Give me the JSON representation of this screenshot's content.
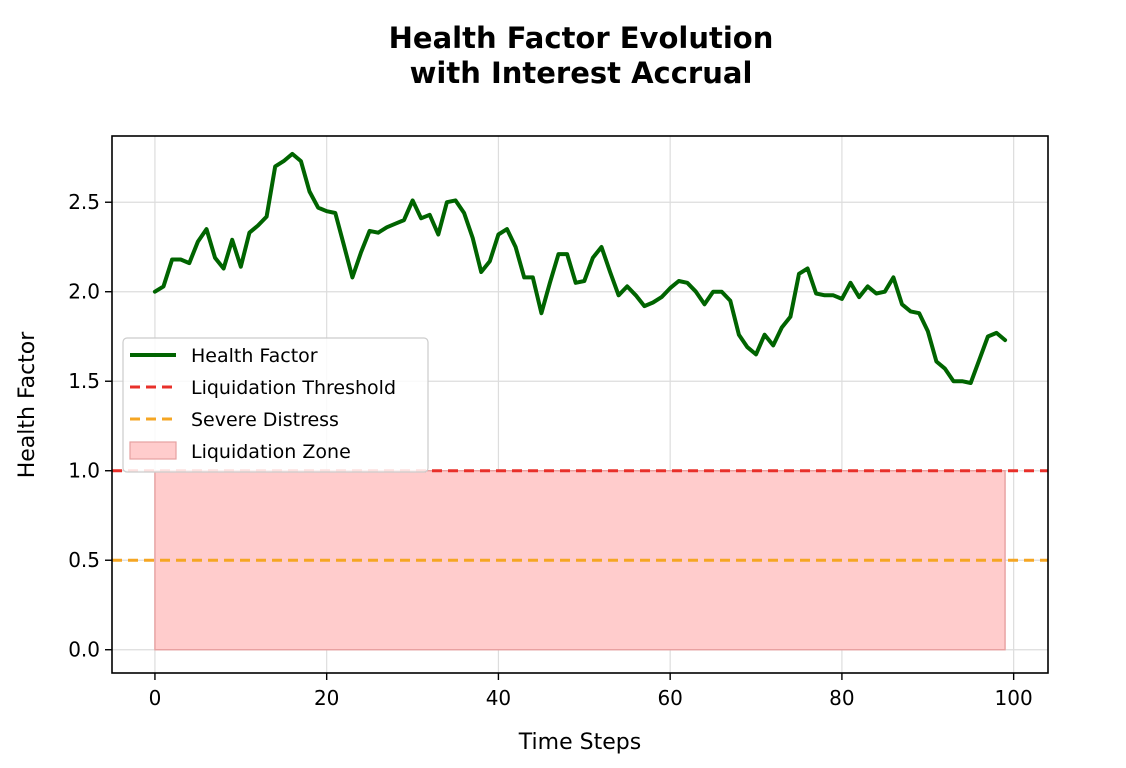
{
  "chart_data": {
    "type": "line",
    "title_lines": [
      "Health Factor Evolution",
      "with Interest Accrual"
    ],
    "xlabel": "Time Steps",
    "ylabel": "Health Factor",
    "xlim": [
      -5,
      104
    ],
    "ylim": [
      -0.13,
      2.87
    ],
    "xticks": [
      0,
      20,
      40,
      60,
      80,
      100
    ],
    "yticks": [
      0.0,
      0.5,
      1.0,
      1.5,
      2.0,
      2.5
    ],
    "xtick_labels": [
      "0",
      "20",
      "40",
      "60",
      "80",
      "100"
    ],
    "ytick_labels": [
      "0.0",
      "0.5",
      "1.0",
      "1.5",
      "2.0",
      "2.5"
    ],
    "grid": true,
    "legend_position": "center-left",
    "series": [
      {
        "name": "Health Factor",
        "color": "#006400",
        "x": [
          0,
          1,
          2,
          3,
          4,
          5,
          6,
          7,
          8,
          9,
          10,
          11,
          12,
          13,
          14,
          15,
          16,
          17,
          18,
          19,
          20,
          21,
          22,
          23,
          24,
          25,
          26,
          27,
          28,
          29,
          30,
          31,
          32,
          33,
          34,
          35,
          36,
          37,
          38,
          39,
          40,
          41,
          42,
          43,
          44,
          45,
          46,
          47,
          48,
          49,
          50,
          51,
          52,
          53,
          54,
          55,
          56,
          57,
          58,
          59,
          60,
          61,
          62,
          63,
          64,
          65,
          66,
          67,
          68,
          69,
          70,
          71,
          72,
          73,
          74,
          75,
          76,
          77,
          78,
          79,
          80,
          81,
          82,
          83,
          84,
          85,
          86,
          87,
          88,
          89,
          90,
          91,
          92,
          93,
          94,
          95,
          96,
          97,
          98,
          99
        ],
        "y": [
          2.0,
          2.03,
          2.18,
          2.18,
          2.16,
          2.28,
          2.35,
          2.19,
          2.13,
          2.29,
          2.14,
          2.33,
          2.37,
          2.42,
          2.7,
          2.73,
          2.77,
          2.73,
          2.56,
          2.47,
          2.45,
          2.44,
          2.26,
          2.08,
          2.22,
          2.34,
          2.33,
          2.36,
          2.38,
          2.4,
          2.51,
          2.41,
          2.43,
          2.32,
          2.5,
          2.51,
          2.44,
          2.3,
          2.11,
          2.17,
          2.32,
          2.35,
          2.25,
          2.08,
          2.08,
          1.88,
          2.05,
          2.21,
          2.21,
          2.05,
          2.06,
          2.19,
          2.25,
          2.11,
          1.98,
          2.03,
          1.98,
          1.92,
          1.94,
          1.97,
          2.02,
          2.06,
          2.05,
          2.0,
          1.93,
          2.0,
          2.0,
          1.95,
          1.76,
          1.69,
          1.65,
          1.76,
          1.7,
          1.8,
          1.86,
          2.1,
          2.13,
          1.99,
          1.98,
          1.98,
          1.96,
          2.05,
          1.97,
          2.03,
          1.99,
          2.0,
          2.08,
          1.93,
          1.89,
          1.88,
          1.78,
          1.61,
          1.57,
          1.5,
          1.5,
          1.49,
          1.62,
          1.75,
          1.77,
          1.73
        ]
      },
      {
        "name": "Liquidation Threshold",
        "color": "#e8302a",
        "y": 1.0
      },
      {
        "name": "Severe Distress",
        "color": "#f5a623",
        "y": 0.5
      },
      {
        "name": "Liquidation Zone",
        "color": "#ffcccc",
        "x_range": [
          0,
          99
        ],
        "y_range": [
          0,
          1.0
        ]
      }
    ]
  }
}
